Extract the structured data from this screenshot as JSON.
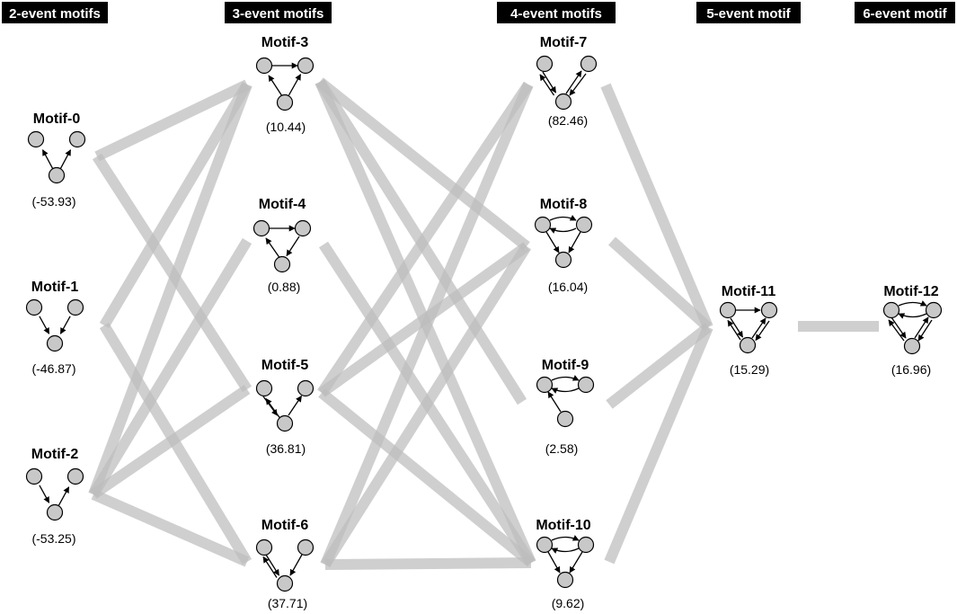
{
  "headers": [
    "2-event motifs",
    "3-event motifs",
    "4-event motifs",
    "5-event motif",
    "6-event motif"
  ],
  "motifs": [
    {
      "id": "Motif-0",
      "name": "Motif-0",
      "score": "(-53.93)"
    },
    {
      "id": "Motif-1",
      "name": "Motif-1",
      "score": "(-46.87)"
    },
    {
      "id": "Motif-2",
      "name": "Motif-2",
      "score": "(-53.25)"
    },
    {
      "id": "Motif-3",
      "name": "Motif-3",
      "score": "(10.44)"
    },
    {
      "id": "Motif-4",
      "name": "Motif-4",
      "score": "(0.88)"
    },
    {
      "id": "Motif-5",
      "name": "Motif-5",
      "score": "(36.81)"
    },
    {
      "id": "Motif-6",
      "name": "Motif-6",
      "score": "(37.71)"
    },
    {
      "id": "Motif-7",
      "name": "Motif-7",
      "score": "(82.46)"
    },
    {
      "id": "Motif-8",
      "name": "Motif-8",
      "score": "(16.04)"
    },
    {
      "id": "Motif-9",
      "name": "Motif-9",
      "score": "(2.58)"
    },
    {
      "id": "Motif-10",
      "name": "Motif-10",
      "score": "(9.62)"
    },
    {
      "id": "Motif-11",
      "name": "Motif-11",
      "score": "(15.29)"
    },
    {
      "id": "Motif-12",
      "name": "Motif-12",
      "score": "(16.96)"
    }
  ],
  "connections": [
    [
      "Motif-0",
      "Motif-3"
    ],
    [
      "Motif-0",
      "Motif-5"
    ],
    [
      "Motif-1",
      "Motif-3"
    ],
    [
      "Motif-1",
      "Motif-6"
    ],
    [
      "Motif-2",
      "Motif-3"
    ],
    [
      "Motif-2",
      "Motif-4"
    ],
    [
      "Motif-2",
      "Motif-5"
    ],
    [
      "Motif-2",
      "Motif-6"
    ],
    [
      "Motif-3",
      "Motif-8"
    ],
    [
      "Motif-3",
      "Motif-9"
    ],
    [
      "Motif-3",
      "Motif-10"
    ],
    [
      "Motif-4",
      "Motif-10"
    ],
    [
      "Motif-5",
      "Motif-7"
    ],
    [
      "Motif-5",
      "Motif-8"
    ],
    [
      "Motif-5",
      "Motif-10"
    ],
    [
      "Motif-6",
      "Motif-7"
    ],
    [
      "Motif-6",
      "Motif-8"
    ],
    [
      "Motif-6",
      "Motif-10"
    ],
    [
      "Motif-7",
      "Motif-11"
    ],
    [
      "Motif-8",
      "Motif-11"
    ],
    [
      "Motif-9",
      "Motif-11"
    ],
    [
      "Motif-10",
      "Motif-11"
    ],
    [
      "Motif-11",
      "Motif-12"
    ]
  ],
  "colors": {
    "connection": "#bdbdbd",
    "node_fill": "#c8c8c8",
    "header_bg": "#000000",
    "header_text": "#ffffff"
  }
}
